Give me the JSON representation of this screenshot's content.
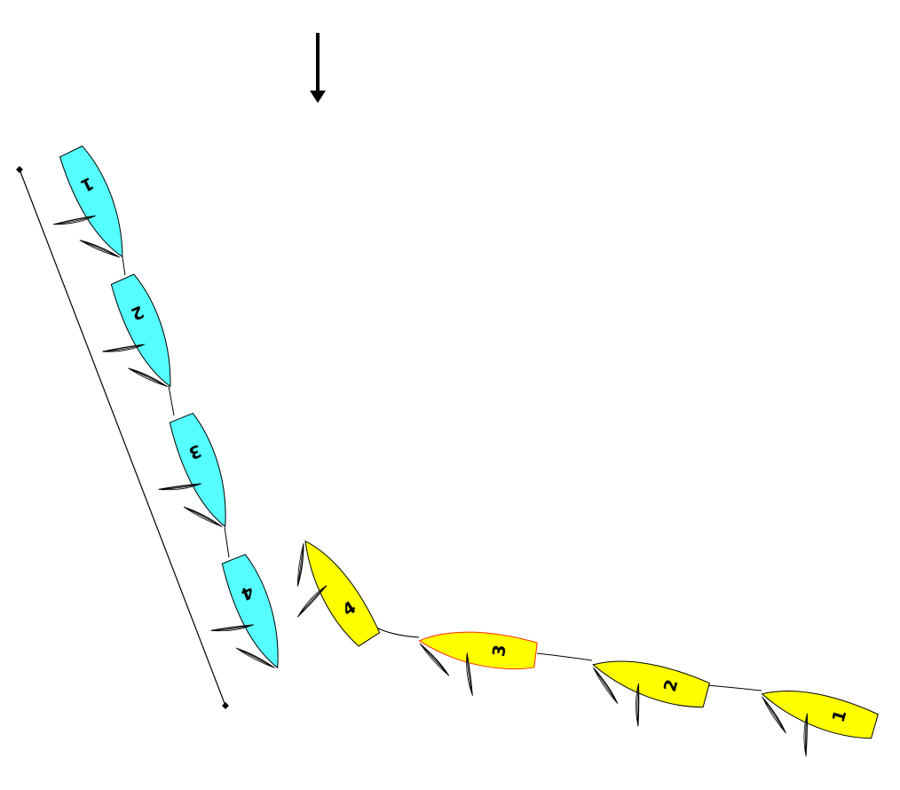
{
  "colors": {
    "team_a": "#55ffff",
    "team_b": "#ffff00",
    "highlight_outline": "#ff2a00",
    "outline": "#000000"
  },
  "wind_indicator": {
    "icon": "arrow-down-icon",
    "direction": "down"
  },
  "team_a_boats": [
    {
      "label": "1"
    },
    {
      "label": "2"
    },
    {
      "label": "3"
    },
    {
      "label": "4"
    }
  ],
  "team_b_boats": [
    {
      "label": "1"
    },
    {
      "label": "2"
    },
    {
      "label": "3",
      "highlighted": true
    },
    {
      "label": "4"
    }
  ]
}
